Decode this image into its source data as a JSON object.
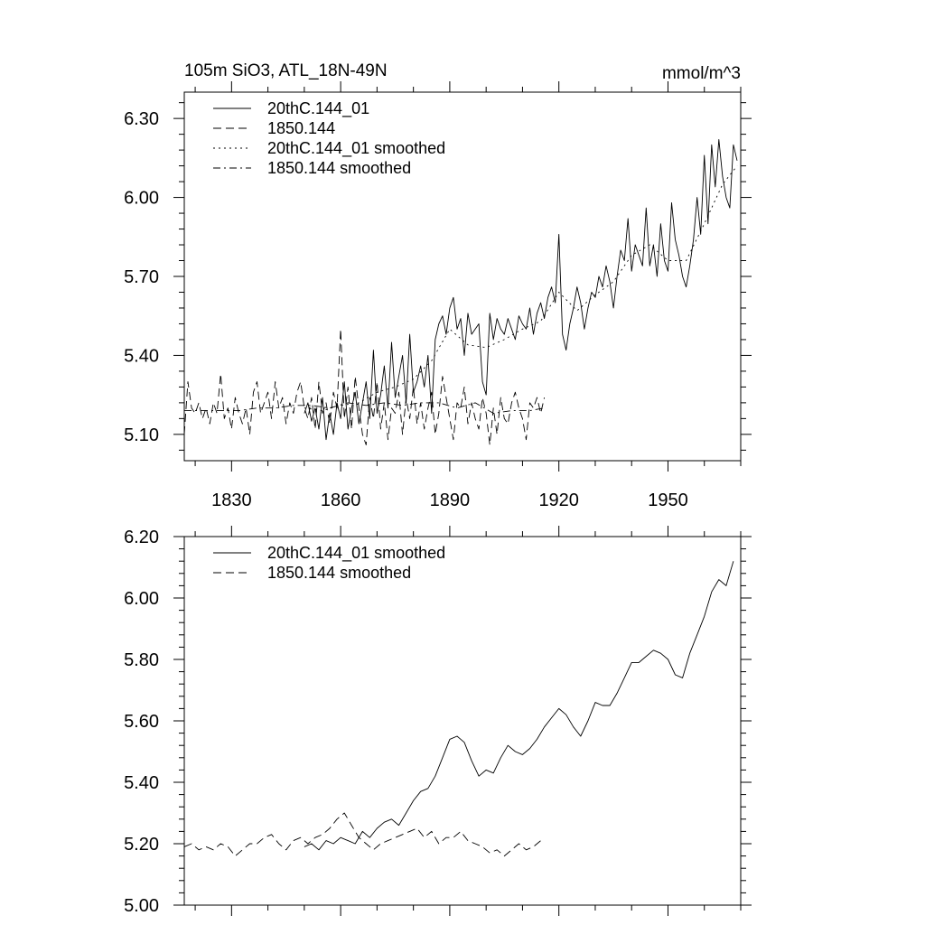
{
  "chart_data": [
    {
      "type": "line",
      "title": "105m SiO3, ATL_18N-49N",
      "units": "mmol/m^3",
      "xlim": [
        1817,
        1970
      ],
      "ylim": [
        5.0,
        6.4
      ],
      "xticks": [
        {
          "value": 1830,
          "label": "1830"
        },
        {
          "value": 1860,
          "label": "1860"
        },
        {
          "value": 1890,
          "label": "1890"
        },
        {
          "value": 1920,
          "label": "1920"
        },
        {
          "value": 1950,
          "label": "1950"
        }
      ],
      "yticks": [
        {
          "value": 5.1,
          "label": "5.10"
        },
        {
          "value": 5.4,
          "label": "5.40"
        },
        {
          "value": 5.7,
          "label": "5.70"
        },
        {
          "value": 6.0,
          "label": "6.00"
        },
        {
          "value": 6.3,
          "label": "6.30"
        }
      ],
      "legend": "top-left",
      "series": [
        {
          "name": "20thC.144_01",
          "dash": "solid",
          "x": [
            1850,
            1851,
            1852,
            1853,
            1854,
            1855,
            1856,
            1857,
            1858,
            1859,
            1860,
            1861,
            1862,
            1863,
            1864,
            1865,
            1866,
            1867,
            1868,
            1869,
            1870,
            1871,
            1872,
            1873,
            1874,
            1875,
            1876,
            1877,
            1878,
            1879,
            1880,
            1881,
            1882,
            1883,
            1884,
            1885,
            1886,
            1887,
            1888,
            1889,
            1890,
            1891,
            1892,
            1893,
            1894,
            1895,
            1896,
            1897,
            1898,
            1899,
            1900,
            1901,
            1902,
            1903,
            1904,
            1905,
            1906,
            1907,
            1908,
            1909,
            1910,
            1911,
            1912,
            1913,
            1914,
            1915,
            1916,
            1917,
            1918,
            1919,
            1920,
            1921,
            1922,
            1923,
            1924,
            1925,
            1926,
            1927,
            1928,
            1929,
            1930,
            1931,
            1932,
            1933,
            1934,
            1935,
            1936,
            1937,
            1938,
            1939,
            1940,
            1941,
            1942,
            1943,
            1944,
            1945,
            1946,
            1947,
            1948,
            1949,
            1950,
            1951,
            1952,
            1953,
            1954,
            1955,
            1956,
            1957,
            1958,
            1959,
            1960,
            1961,
            1962,
            1963,
            1964,
            1965,
            1966,
            1967,
            1968,
            1969
          ],
          "y": [
            5.18,
            5.22,
            5.15,
            5.2,
            5.12,
            5.24,
            5.08,
            5.18,
            5.1,
            5.22,
            5.16,
            5.3,
            5.12,
            5.2,
            5.26,
            5.14,
            5.22,
            5.3,
            5.16,
            5.42,
            5.18,
            5.25,
            5.36,
            5.2,
            5.45,
            5.24,
            5.32,
            5.4,
            5.22,
            5.48,
            5.26,
            5.3,
            5.36,
            5.28,
            5.4,
            5.18,
            5.46,
            5.52,
            5.55,
            5.48,
            5.58,
            5.62,
            5.5,
            5.54,
            5.4,
            5.56,
            5.48,
            5.5,
            5.52,
            5.3,
            5.25,
            5.56,
            5.46,
            5.54,
            5.5,
            5.48,
            5.54,
            5.5,
            5.46,
            5.55,
            5.52,
            5.5,
            5.58,
            5.48,
            5.56,
            5.6,
            5.54,
            5.62,
            5.66,
            5.6,
            5.86,
            5.48,
            5.42,
            5.52,
            5.58,
            5.66,
            5.6,
            5.5,
            5.58,
            5.64,
            5.62,
            5.7,
            5.66,
            5.74,
            5.68,
            5.58,
            5.7,
            5.8,
            5.76,
            5.92,
            5.72,
            5.82,
            5.78,
            5.74,
            5.96,
            5.74,
            5.82,
            5.7,
            5.9,
            5.76,
            5.72,
            5.98,
            5.84,
            5.78,
            5.7,
            5.66,
            5.74,
            5.84,
            6.0,
            5.86,
            6.16,
            5.9,
            6.2,
            6.04,
            6.22,
            6.08,
            6.0,
            5.96,
            6.2,
            6.14
          ],
          "plotted_in_tail": true
        },
        {
          "name": "1850.144",
          "dash": "dashed",
          "x": [
            1817,
            1818,
            1819,
            1820,
            1821,
            1822,
            1823,
            1824,
            1825,
            1826,
            1827,
            1828,
            1829,
            1830,
            1831,
            1832,
            1833,
            1834,
            1835,
            1836,
            1837,
            1838,
            1839,
            1840,
            1841,
            1842,
            1843,
            1844,
            1845,
            1846,
            1847,
            1848,
            1849,
            1850,
            1851,
            1852,
            1853,
            1854,
            1855,
            1856,
            1857,
            1858,
            1859,
            1860,
            1861,
            1862,
            1863,
            1864,
            1865,
            1866,
            1867,
            1868,
            1869,
            1870,
            1871,
            1872,
            1873,
            1874,
            1875,
            1876,
            1877,
            1878,
            1879,
            1880,
            1881,
            1882,
            1883,
            1884,
            1885,
            1886,
            1887,
            1888,
            1889,
            1890,
            1891,
            1892,
            1893,
            1894,
            1895,
            1896,
            1897,
            1898,
            1899,
            1900,
            1901,
            1902,
            1903,
            1904,
            1905,
            1906,
            1907,
            1908,
            1909,
            1910,
            1911,
            1912,
            1913,
            1914,
            1915,
            1916
          ],
          "y": [
            5.1,
            5.3,
            5.2,
            5.18,
            5.22,
            5.16,
            5.2,
            5.14,
            5.22,
            5.18,
            5.33,
            5.16,
            5.2,
            5.12,
            5.24,
            5.18,
            5.14,
            5.2,
            5.1,
            5.26,
            5.3,
            5.18,
            5.22,
            5.26,
            5.16,
            5.3,
            5.2,
            5.24,
            5.14,
            5.22,
            5.18,
            5.26,
            5.3,
            5.2,
            5.16,
            5.24,
            5.12,
            5.3,
            5.18,
            5.22,
            5.14,
            5.26,
            5.2,
            5.5,
            5.16,
            5.28,
            5.12,
            5.32,
            5.2,
            5.1,
            5.06,
            5.24,
            5.16,
            5.3,
            5.12,
            5.22,
            5.08,
            5.2,
            5.18,
            5.26,
            5.1,
            5.24,
            5.16,
            5.28,
            5.14,
            5.22,
            5.12,
            5.2,
            5.26,
            5.1,
            5.18,
            5.32,
            5.24,
            5.16,
            5.08,
            5.22,
            5.2,
            5.28,
            5.14,
            5.22,
            5.16,
            5.12,
            5.24,
            5.18,
            5.06,
            5.2,
            5.1,
            5.24,
            5.16,
            5.14,
            5.22,
            5.26,
            5.2,
            5.16,
            5.08,
            5.22,
            5.2,
            5.24,
            5.18,
            5.24
          ]
        },
        {
          "name": "20thC.144_01 smoothed",
          "dash": "dotted",
          "x": [
            1850,
            1855,
            1860,
            1865,
            1870,
            1875,
            1880,
            1885,
            1890,
            1895,
            1900,
            1905,
            1910,
            1915,
            1920,
            1925,
            1930,
            1935,
            1940,
            1945,
            1950,
            1955,
            1960,
            1965,
            1969
          ],
          "y": [
            5.2,
            5.19,
            5.21,
            5.22,
            5.26,
            5.28,
            5.31,
            5.38,
            5.5,
            5.44,
            5.43,
            5.46,
            5.5,
            5.53,
            5.64,
            5.57,
            5.63,
            5.68,
            5.78,
            5.82,
            5.76,
            5.76,
            5.9,
            6.05,
            6.12
          ]
        },
        {
          "name": "1850.144 smoothed",
          "dash": "dashdot",
          "x": [
            1817,
            1822,
            1827,
            1832,
            1837,
            1842,
            1847,
            1852,
            1857,
            1862,
            1867,
            1872,
            1877,
            1882,
            1887,
            1892,
            1897,
            1902,
            1907,
            1912,
            1916
          ],
          "y": [
            5.19,
            5.19,
            5.19,
            5.19,
            5.2,
            5.2,
            5.21,
            5.21,
            5.2,
            5.22,
            5.21,
            5.22,
            5.21,
            5.22,
            5.22,
            5.2,
            5.22,
            5.18,
            5.19,
            5.19,
            5.2
          ]
        }
      ]
    },
    {
      "type": "line",
      "xlim": [
        1817,
        1970
      ],
      "ylim": [
        5.0,
        6.2
      ],
      "xticks": [
        {
          "value": 1830,
          "label": ""
        },
        {
          "value": 1860,
          "label": ""
        },
        {
          "value": 1890,
          "label": ""
        },
        {
          "value": 1920,
          "label": ""
        },
        {
          "value": 1950,
          "label": ""
        }
      ],
      "yticks": [
        {
          "value": 5.0,
          "label": "5.00"
        },
        {
          "value": 5.2,
          "label": "5.20"
        },
        {
          "value": 5.4,
          "label": "5.40"
        },
        {
          "value": 5.6,
          "label": "5.60"
        },
        {
          "value": 5.8,
          "label": "5.80"
        },
        {
          "value": 6.0,
          "label": "6.00"
        },
        {
          "value": 6.2,
          "label": "6.20"
        }
      ],
      "legend": "top-left",
      "series": [
        {
          "name": "20thC.144_01 smoothed",
          "dash": "solid",
          "x": [
            1850,
            1852,
            1854,
            1856,
            1858,
            1860,
            1862,
            1864,
            1866,
            1868,
            1870,
            1872,
            1874,
            1876,
            1878,
            1880,
            1882,
            1884,
            1886,
            1888,
            1890,
            1892,
            1894,
            1896,
            1898,
            1900,
            1902,
            1904,
            1906,
            1908,
            1910,
            1912,
            1914,
            1916,
            1918,
            1920,
            1922,
            1924,
            1926,
            1928,
            1930,
            1932,
            1934,
            1936,
            1938,
            1940,
            1942,
            1944,
            1946,
            1948,
            1950,
            1952,
            1954,
            1956,
            1958,
            1960,
            1962,
            1964,
            1966,
            1968
          ],
          "y": [
            5.19,
            5.2,
            5.18,
            5.21,
            5.2,
            5.22,
            5.21,
            5.2,
            5.24,
            5.22,
            5.25,
            5.27,
            5.28,
            5.26,
            5.3,
            5.34,
            5.37,
            5.38,
            5.42,
            5.48,
            5.54,
            5.55,
            5.53,
            5.47,
            5.42,
            5.44,
            5.43,
            5.48,
            5.52,
            5.5,
            5.49,
            5.51,
            5.54,
            5.58,
            5.61,
            5.64,
            5.62,
            5.58,
            5.55,
            5.6,
            5.66,
            5.65,
            5.65,
            5.69,
            5.74,
            5.79,
            5.79,
            5.81,
            5.83,
            5.82,
            5.8,
            5.75,
            5.74,
            5.82,
            5.88,
            5.94,
            6.02,
            6.06,
            6.04,
            6.12
          ]
        },
        {
          "name": "1850.144 smoothed",
          "dash": "dashed",
          "x": [
            1817,
            1819,
            1821,
            1823,
            1825,
            1827,
            1829,
            1831,
            1833,
            1835,
            1837,
            1839,
            1841,
            1843,
            1845,
            1847,
            1849,
            1851,
            1853,
            1855,
            1857,
            1859,
            1861,
            1863,
            1865,
            1867,
            1869,
            1871,
            1873,
            1875,
            1877,
            1879,
            1881,
            1883,
            1885,
            1887,
            1889,
            1891,
            1893,
            1895,
            1897,
            1899,
            1901,
            1903,
            1905,
            1907,
            1909,
            1911,
            1913,
            1915
          ],
          "y": [
            5.19,
            5.2,
            5.18,
            5.19,
            5.18,
            5.2,
            5.19,
            5.16,
            5.18,
            5.2,
            5.2,
            5.22,
            5.23,
            5.2,
            5.18,
            5.21,
            5.22,
            5.2,
            5.22,
            5.23,
            5.25,
            5.28,
            5.3,
            5.26,
            5.22,
            5.2,
            5.18,
            5.2,
            5.21,
            5.22,
            5.23,
            5.24,
            5.25,
            5.22,
            5.24,
            5.2,
            5.22,
            5.22,
            5.24,
            5.21,
            5.2,
            5.19,
            5.17,
            5.18,
            5.16,
            5.18,
            5.2,
            5.18,
            5.19,
            5.21
          ]
        }
      ]
    }
  ]
}
